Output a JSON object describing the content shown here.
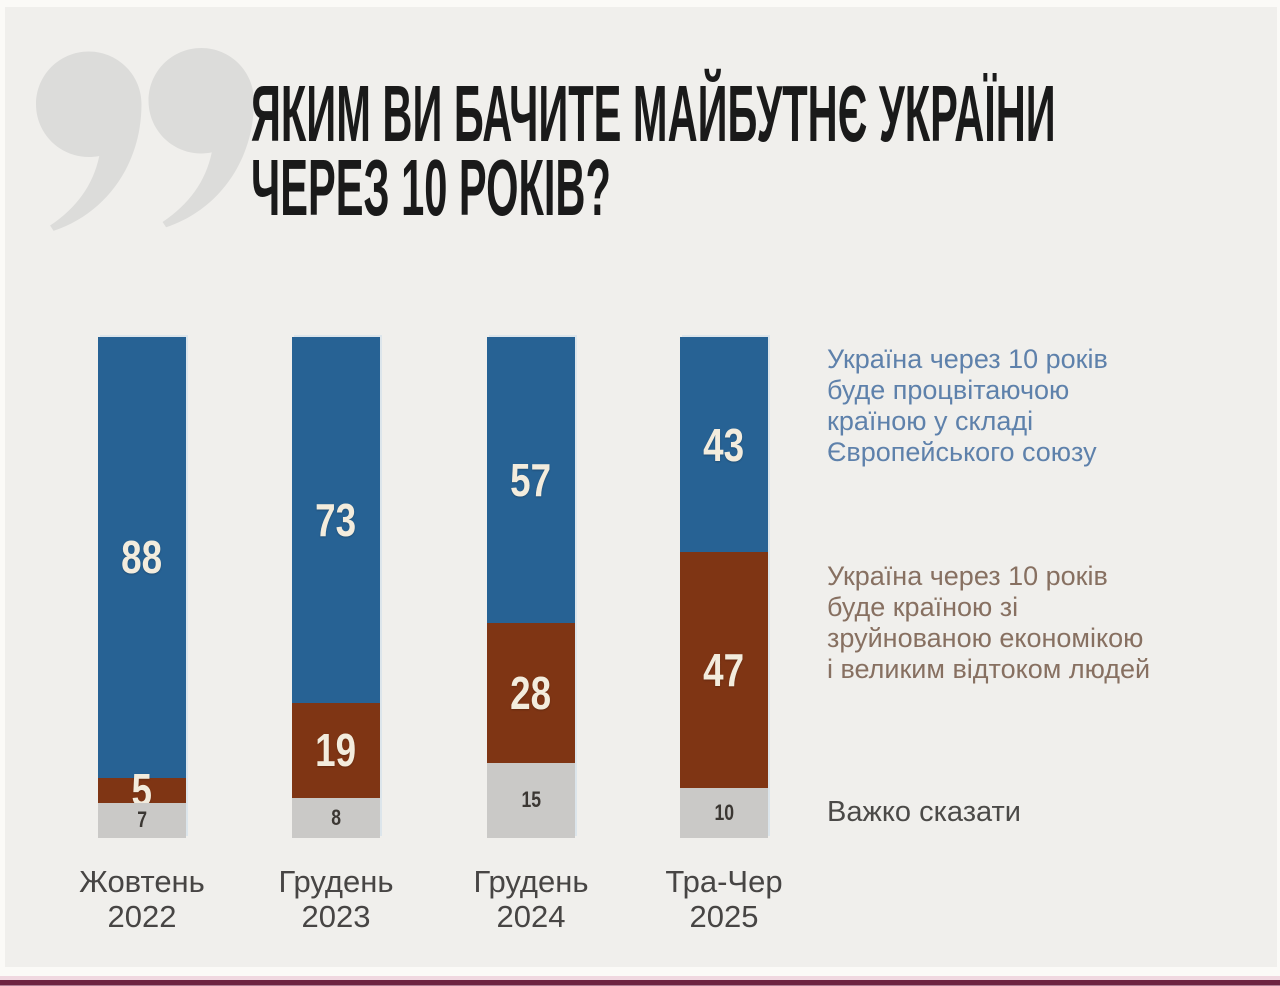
{
  "header": {
    "title_line1": "ЯКИМ ВИ БАЧИТЕ МАЙБУТНЄ УКРАЇНИ",
    "title_line2": "ЧЕРЕЗ 10 РОКІВ?",
    "title_color": "#1a1a1a",
    "quote_icon": "double-quote-marks",
    "quote_color": "#dcdcda"
  },
  "chart_data": {
    "type": "bar",
    "stacked": true,
    "value_unit": "%",
    "title": "ЯКИМ ВИ БАЧИТЕ МАЙБУТНЄ УКРАЇНИ ЧЕРЕЗ 10 РОКІВ?",
    "categories": [
      "Жовтень 2022",
      "Грудень 2023",
      "Грудень 2024",
      "Тра-Чер 2025"
    ],
    "categories_lines": [
      {
        "month": "Жовтень",
        "year": "2022"
      },
      {
        "month": "Грудень",
        "year": "2023"
      },
      {
        "month": "Грудень",
        "year": "2024"
      },
      {
        "month": "Тра-Чер",
        "year": "2025"
      }
    ],
    "series": [
      {
        "name": "Україна через 10 років буде процвітаючою країною у складі Європейського союзу",
        "color": "#276294",
        "label_color": "#f3ecdd",
        "values": [
          88,
          73,
          57,
          43
        ]
      },
      {
        "name": "Україна через 10 років буде країною зі зруйнованою економікою і великим відтоком людей",
        "color": "#7f3514",
        "label_color": "#f3ecdd",
        "values": [
          5,
          19,
          28,
          47
        ]
      },
      {
        "name": "Важко сказати",
        "color": "#cac9c7",
        "label_color": "#3b3733",
        "values": [
          7,
          8,
          15,
          10
        ]
      }
    ],
    "ylim": [
      0,
      100
    ],
    "grid": false,
    "legend_position": "right",
    "background": "#f0efec"
  },
  "legend": {
    "eu": {
      "color": "#5e81ab",
      "lines": [
        "Україна через 10 років",
        "буде процвітаючою",
        "країною у складі",
        "Європейського союзу"
      ]
    },
    "ruined": {
      "color": "#877061",
      "lines": [
        "Україна через 10 років",
        "буде країною зі",
        "зруйнованою економікою",
        "і великим відтоком людей"
      ]
    },
    "hard": {
      "color": "#4b4a48",
      "label": "Важко сказати"
    }
  },
  "footer": {
    "stripe_colors": [
      "#fbfaf7",
      "#f0d8e0",
      "#6e2240"
    ]
  }
}
